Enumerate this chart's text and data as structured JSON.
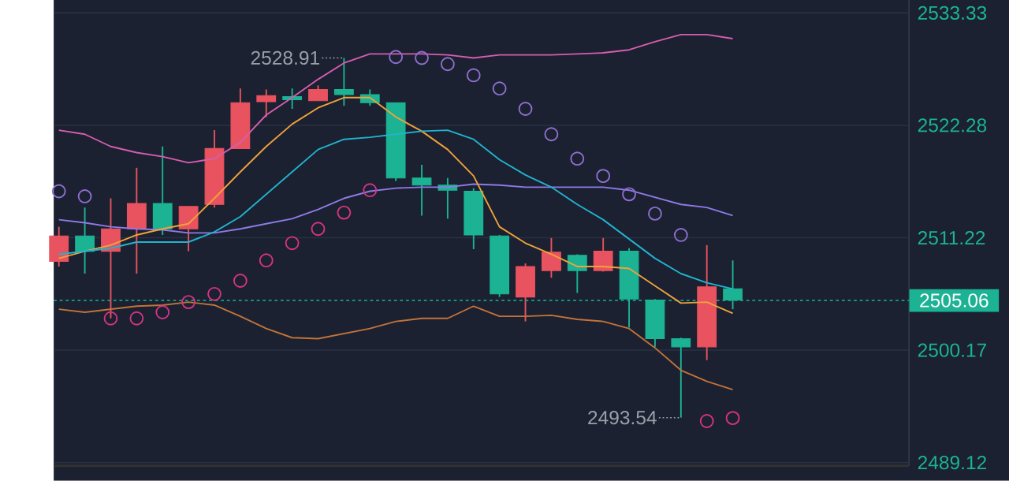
{
  "chart_data": {
    "type": "candlestick",
    "categories": [
      null,
      null,
      null,
      null,
      null,
      null,
      null,
      null,
      null,
      null,
      null,
      null,
      null,
      null,
      null,
      null,
      null,
      null,
      null,
      null,
      null,
      null,
      null,
      null,
      null,
      null,
      null
    ],
    "ohlc": [
      [
        2508.9,
        2512.3,
        2508.4,
        2511.4
      ],
      [
        2511.4,
        2514.2,
        2507.7,
        2509.9
      ],
      [
        2509.9,
        2515.1,
        2503.3,
        2512.1
      ],
      [
        2512.1,
        2518.1,
        2507.7,
        2514.6
      ],
      [
        2514.6,
        2520.2,
        2511.5,
        2512.1
      ],
      [
        2512.1,
        2514.3,
        2509.9,
        2514.3
      ],
      [
        2514.5,
        2521.8,
        2514.2,
        2520.0
      ],
      [
        2520.0,
        2525.9,
        2520.0,
        2524.5
      ],
      [
        2524.6,
        2525.8,
        2523.1,
        2525.2
      ],
      [
        2525.1,
        2525.9,
        2523.9,
        2524.8
      ],
      [
        2524.7,
        2526.2,
        2524.7,
        2525.8
      ],
      [
        2525.8,
        2528.91,
        2524.2,
        2525.3
      ],
      [
        2525.3,
        2525.8,
        2524.2,
        2524.5
      ],
      [
        2524.5,
        2524.5,
        2516.8,
        2517.1
      ],
      [
        2517.1,
        2518.4,
        2513.4,
        2516.4
      ],
      [
        2516.4,
        2517.1,
        2513.1,
        2515.9
      ],
      [
        2515.8,
        2516.1,
        2510.1,
        2511.5
      ],
      [
        2511.4,
        2511.5,
        2505.4,
        2505.7
      ],
      [
        2505.4,
        2508.7,
        2503.0,
        2508.4
      ],
      [
        2508.0,
        2511.2,
        2507.3,
        2509.8
      ],
      [
        2509.5,
        2509.6,
        2505.8,
        2508.0
      ],
      [
        2508.0,
        2511.2,
        2507.9,
        2509.9
      ],
      [
        2509.9,
        2510.2,
        2502.4,
        2505.2
      ],
      [
        2505.1,
        2505.2,
        2500.5,
        2501.3
      ],
      [
        2501.3,
        2501.4,
        2493.54,
        2500.5
      ],
      [
        2500.5,
        2510.5,
        2499.2,
        2506.4
      ],
      [
        2506.2,
        2509.0,
        2504.2,
        2505.1
      ]
    ],
    "colors": [
      "#e8535f",
      "#1bb394",
      "#e8535f",
      "#e8535f",
      "#1bb394",
      "#e8535f",
      "#e8535f",
      "#e8535f",
      "#e8535f",
      "#1bb394",
      "#e8535f",
      "#1bb394",
      "#1bb394",
      "#1bb394",
      "#1bb394",
      "#1bb394",
      "#1bb394",
      "#1bb394",
      "#e8535f",
      "#e8535f",
      "#1bb394",
      "#e8535f",
      "#1bb394",
      "#1bb394",
      "#1bb394",
      "#e8535f",
      "#1bb394"
    ],
    "series": [
      {
        "type": "line",
        "color": "#d65db1",
        "values": [
          2521.8,
          2521.4,
          2520.2,
          2519.6,
          2519.2,
          2518.6,
          2519.0,
          2520.6,
          2523.3,
          2525.0,
          2526.8,
          2528.4,
          2529.3,
          2529.3,
          2529.3,
          2529.2,
          2528.9,
          2529.2,
          2529.2,
          2529.2,
          2529.3,
          2529.4,
          2529.7,
          2530.5,
          2531.2,
          2531.2,
          2530.8
        ]
      },
      {
        "type": "line",
        "color": "#8f7ae6",
        "values": [
          2513.0,
          2512.7,
          2512.3,
          2512.1,
          2512.0,
          2511.7,
          2511.7,
          2512.1,
          2512.6,
          2513.1,
          2514.0,
          2515.1,
          2515.8,
          2516.1,
          2516.2,
          2516.2,
          2516.5,
          2516.4,
          2516.2,
          2516.2,
          2516.2,
          2516.2,
          2515.9,
          2515.2,
          2514.5,
          2514.2,
          2513.4
        ]
      },
      {
        "type": "line",
        "color": "#c2733a",
        "values": [
          2504.2,
          2503.9,
          2504.2,
          2504.5,
          2504.6,
          2504.9,
          2504.6,
          2503.5,
          2502.3,
          2501.4,
          2501.3,
          2501.8,
          2502.3,
          2503.0,
          2503.3,
          2503.3,
          2504.5,
          2503.5,
          2503.5,
          2503.6,
          2503.2,
          2503.0,
          2502.3,
          2500.4,
          2498.2,
          2497.1,
          2496.3
        ]
      },
      {
        "type": "line",
        "color": "#f0a23b",
        "values": [
          2509.2,
          2509.9,
          2510.5,
          2511.5,
          2512.1,
          2512.6,
          2515.1,
          2517.7,
          2520.2,
          2522.4,
          2524.0,
          2525.0,
          2525.0,
          2523.1,
          2521.7,
          2519.9,
          2517.3,
          2512.3,
          2510.7,
          2509.6,
          2508.4,
          2508.4,
          2508.2,
          2506.5,
          2504.8,
          2504.9,
          2503.8
        ]
      },
      {
        "type": "line",
        "color": "#21b3cf",
        "values": [
          2509.6,
          2509.9,
          2510.2,
          2510.8,
          2510.8,
          2510.8,
          2511.8,
          2513.3,
          2515.5,
          2517.7,
          2519.9,
          2520.9,
          2521.1,
          2521.4,
          2521.7,
          2521.8,
          2520.9,
          2518.9,
          2517.4,
          2516.2,
          2514.5,
          2513.0,
          2511.1,
          2509.2,
          2507.7,
          2506.8,
          2506.2
        ]
      },
      {
        "type": "scatter",
        "marker": "circle",
        "color": "#d63384",
        "values": [
          null,
          null,
          2503.3,
          2503.3,
          2503.9,
          2504.9,
          2505.7,
          2507.0,
          2509.0,
          2510.7,
          2512.1,
          2513.7,
          2515.9,
          null,
          null,
          null,
          null,
          null,
          null,
          null,
          null,
          null,
          null,
          null,
          null,
          2493.2,
          2493.5
        ]
      },
      {
        "type": "scatter",
        "marker": "circle",
        "color": "#8f6fd0",
        "values": [
          2515.8,
          2515.3,
          null,
          null,
          null,
          null,
          null,
          null,
          null,
          null,
          null,
          null,
          null,
          2529.0,
          2528.9,
          2528.3,
          2527.2,
          2525.9,
          2523.9,
          2521.4,
          2519.0,
          2517.3,
          2515.5,
          2513.6,
          2511.5,
          null,
          null
        ]
      }
    ],
    "ylim": [
      2488.8,
      2534.6
    ],
    "yticks": [
      2489.12,
      2500.17,
      2511.22,
      2522.28,
      2533.33
    ],
    "grid": "y",
    "ref_lines": [
      {
        "axis": "y",
        "value": 2505.06,
        "label": "2505.06",
        "color": "#1bb394",
        "line_style": "dotted"
      }
    ],
    "annotations": [
      "2528.91",
      "2493.54"
    ]
  }
}
